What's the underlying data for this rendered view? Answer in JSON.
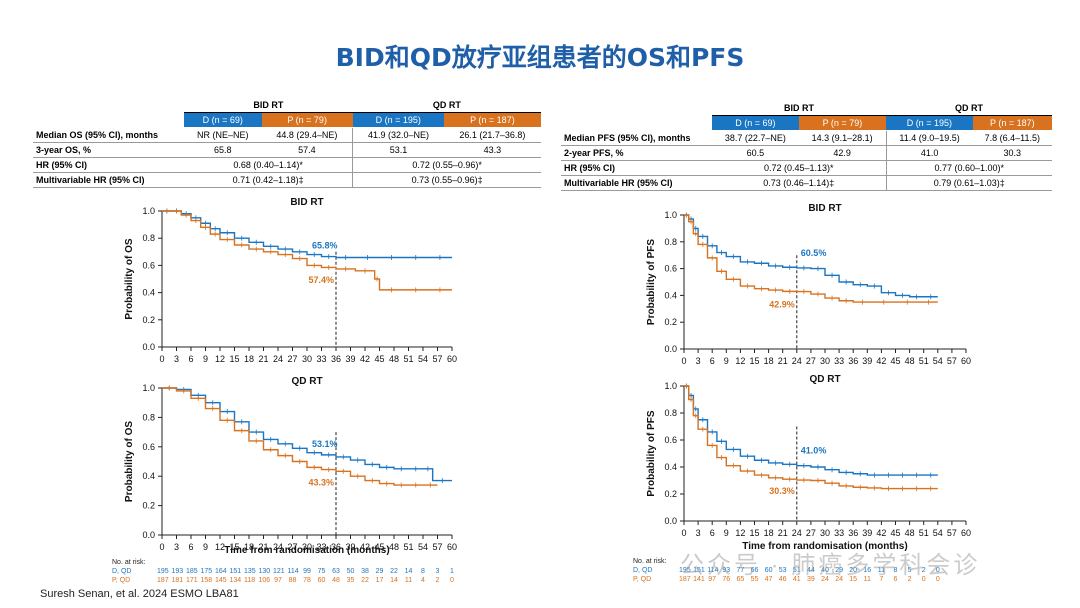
{
  "page_title": "BID和QD放疗亚组患者的OS和PFS",
  "footer": "Suresh Senan, et al. 2024 ESMO LBA81",
  "watermark": "公众号 · 肺癌多学科会诊",
  "colors": {
    "d": "#1a76c2",
    "p": "#d8721f"
  },
  "os_table": {
    "groups": [
      "BID RT",
      "QD RT"
    ],
    "arms": [
      "D (n = 69)",
      "P (n = 79)",
      "D (n = 195)",
      "P (n = 187)"
    ],
    "rows": [
      {
        "label": "Median OS (95% CI), months",
        "cells": [
          "NR (NE–NE)",
          "44.8 (29.4–NE)",
          "41.9 (32.0–NE)",
          "26.1 (21.7–36.8)"
        ]
      },
      {
        "label": "3-year OS, %",
        "cells": [
          "65.8",
          "57.4",
          "53.1",
          "43.3"
        ]
      },
      {
        "label": "HR (95% CI)",
        "merged": [
          "0.68 (0.40–1.14)*",
          "0.72 (0.55–0.96)*"
        ]
      },
      {
        "label": "Multivariable HR (95% CI)",
        "merged": [
          "0.71 (0.42–1.18)‡",
          "0.73 (0.55–0.96)‡"
        ]
      }
    ]
  },
  "pfs_table": {
    "groups": [
      "BID RT",
      "QD RT"
    ],
    "arms": [
      "D (n = 69)",
      "P (n = 79)",
      "D (n = 195)",
      "P (n = 187)"
    ],
    "rows": [
      {
        "label": "Median PFS (95% CI), months",
        "cells": [
          "38.7 (22.7–NE)",
          "14.3 (9.1–28.1)",
          "11.4 (9.0–19.5)",
          "7.8 (6.4–11.5)"
        ]
      },
      {
        "label": "2-year PFS, %",
        "cells": [
          "60.5",
          "42.9",
          "41.0",
          "30.3"
        ]
      },
      {
        "label": "HR (95% CI)",
        "merged": [
          "0.72 (0.45–1.13)*",
          "0.77 (0.60–1.00)*"
        ]
      },
      {
        "label": "Multivariable HR (95% CI)",
        "merged": [
          "0.73 (0.46–1.14)‡",
          "0.79 (0.61–1.03)‡"
        ]
      }
    ]
  },
  "risk_table": {
    "header": "No. at risk:",
    "os": {
      "labels": [
        "D, QD",
        "P, QD"
      ],
      "d": [
        195,
        193,
        185,
        175,
        164,
        151,
        135,
        130,
        121,
        114,
        99,
        75,
        63,
        50,
        38,
        29,
        22,
        14,
        8,
        3,
        1
      ],
      "p": [
        187,
        181,
        171,
        158,
        145,
        134,
        118,
        106,
        97,
        88,
        78,
        60,
        48,
        35,
        22,
        17,
        14,
        11,
        4,
        2,
        0
      ]
    },
    "pfs": {
      "labels": [
        "D, QD",
        "P, QD"
      ],
      "d": [
        195,
        151,
        114,
        93,
        77,
        66,
        60,
        53,
        51,
        44,
        40,
        29,
        20,
        16,
        11,
        8,
        5,
        2,
        0
      ],
      "p": [
        187,
        141,
        97,
        76,
        65,
        55,
        47,
        46,
        41,
        39,
        24,
        24,
        15,
        11,
        7,
        6,
        2,
        0,
        0
      ]
    }
  },
  "chart_data": [
    {
      "type": "line",
      "title": "BID RT",
      "xlabel": "",
      "ylabel": "Probability of OS",
      "xlim": [
        0,
        60
      ],
      "ylim": [
        0,
        1.0
      ],
      "xticks_step": 3,
      "yticks_step": 0.2,
      "landmark_x": 36,
      "legend": "none",
      "grid": false,
      "annotations": [
        {
          "text": "65.8%",
          "series": "D"
        },
        {
          "text": "57.4%",
          "series": "P"
        }
      ],
      "series": [
        {
          "key": "D",
          "x": [
            0,
            2,
            4,
            6,
            8,
            10,
            12,
            15,
            18,
            21,
            24,
            27,
            30,
            33,
            36,
            40,
            45,
            50,
            55,
            60
          ],
          "y": [
            1.0,
            1.0,
            0.98,
            0.95,
            0.91,
            0.87,
            0.84,
            0.8,
            0.77,
            0.74,
            0.72,
            0.7,
            0.68,
            0.665,
            0.658,
            0.658,
            0.658,
            0.658,
            0.658,
            0.658
          ]
        },
        {
          "key": "P",
          "x": [
            0,
            2,
            4,
            6,
            8,
            10,
            12,
            15,
            18,
            21,
            24,
            27,
            30,
            33,
            36,
            40,
            44,
            45,
            50,
            55,
            60
          ],
          "y": [
            1.0,
            1.0,
            0.97,
            0.93,
            0.88,
            0.83,
            0.79,
            0.75,
            0.72,
            0.7,
            0.68,
            0.65,
            0.6,
            0.585,
            0.574,
            0.56,
            0.5,
            0.42,
            0.42,
            0.42,
            0.42
          ]
        }
      ]
    },
    {
      "type": "line",
      "title": "QD RT",
      "xlabel": "Time from randomisation (months)",
      "ylabel": "Probability of OS",
      "xlim": [
        0,
        60
      ],
      "ylim": [
        0,
        1.0
      ],
      "xticks_step": 3,
      "yticks_step": 0.2,
      "landmark_x": 36,
      "legend": "none",
      "grid": false,
      "annotations": [
        {
          "text": "53.1%",
          "series": "D"
        },
        {
          "text": "43.3%",
          "series": "P"
        }
      ],
      "series": [
        {
          "key": "D",
          "x": [
            0,
            3,
            6,
            9,
            12,
            15,
            18,
            21,
            24,
            27,
            30,
            33,
            36,
            39,
            42,
            45,
            48,
            51,
            54,
            56,
            60
          ],
          "y": [
            1.0,
            0.99,
            0.95,
            0.9,
            0.84,
            0.77,
            0.7,
            0.65,
            0.62,
            0.59,
            0.56,
            0.545,
            0.531,
            0.51,
            0.48,
            0.46,
            0.45,
            0.45,
            0.45,
            0.37,
            0.37
          ]
        },
        {
          "key": "P",
          "x": [
            0,
            3,
            6,
            9,
            12,
            15,
            18,
            21,
            24,
            27,
            30,
            33,
            36,
            39,
            42,
            45,
            48,
            51,
            54,
            57
          ],
          "y": [
            1.0,
            0.98,
            0.93,
            0.86,
            0.78,
            0.71,
            0.64,
            0.58,
            0.54,
            0.5,
            0.46,
            0.445,
            0.433,
            0.4,
            0.37,
            0.35,
            0.34,
            0.34,
            0.34,
            0.34
          ]
        }
      ]
    },
    {
      "type": "line",
      "title": "BID RT",
      "xlabel": "",
      "ylabel": "Probability of PFS",
      "xlim": [
        0,
        60
      ],
      "ylim": [
        0,
        1.0
      ],
      "xticks_step": 3,
      "yticks_step": 0.2,
      "landmark_x": 24,
      "legend": "none",
      "grid": false,
      "annotations": [
        {
          "text": "60.5%",
          "series": "D"
        },
        {
          "text": "42.9%",
          "series": "P"
        }
      ],
      "series": [
        {
          "key": "D",
          "x": [
            0,
            1,
            2,
            3,
            5,
            7,
            9,
            12,
            15,
            18,
            21,
            24,
            27,
            30,
            33,
            36,
            39,
            42,
            45,
            48,
            51,
            54
          ],
          "y": [
            1.0,
            0.97,
            0.9,
            0.84,
            0.77,
            0.72,
            0.69,
            0.65,
            0.64,
            0.62,
            0.61,
            0.605,
            0.6,
            0.55,
            0.5,
            0.48,
            0.47,
            0.42,
            0.4,
            0.39,
            0.39,
            0.39
          ]
        },
        {
          "key": "P",
          "x": [
            0,
            1,
            2,
            3,
            5,
            7,
            9,
            12,
            15,
            18,
            21,
            24,
            27,
            30,
            33,
            36,
            40,
            45,
            50,
            54
          ],
          "y": [
            1.0,
            0.95,
            0.86,
            0.78,
            0.68,
            0.58,
            0.52,
            0.47,
            0.45,
            0.44,
            0.43,
            0.429,
            0.41,
            0.38,
            0.36,
            0.35,
            0.35,
            0.35,
            0.35,
            0.35
          ]
        }
      ]
    },
    {
      "type": "line",
      "title": "QD RT",
      "xlabel": "Time from randomisation (months)",
      "ylabel": "Probability of PFS",
      "xlim": [
        0,
        60
      ],
      "ylim": [
        0,
        1.0
      ],
      "xticks_step": 3,
      "yticks_step": 0.2,
      "landmark_x": 24,
      "legend": "none",
      "grid": false,
      "annotations": [
        {
          "text": "41.0%",
          "series": "D"
        },
        {
          "text": "30.3%",
          "series": "P"
        }
      ],
      "series": [
        {
          "key": "D",
          "x": [
            0,
            1,
            2,
            3,
            5,
            7,
            9,
            12,
            15,
            18,
            21,
            24,
            27,
            30,
            33,
            36,
            39,
            42,
            45,
            48,
            51,
            54
          ],
          "y": [
            1.0,
            0.93,
            0.83,
            0.75,
            0.66,
            0.59,
            0.53,
            0.48,
            0.45,
            0.43,
            0.42,
            0.41,
            0.4,
            0.38,
            0.36,
            0.35,
            0.34,
            0.34,
            0.34,
            0.34,
            0.34,
            0.34
          ]
        },
        {
          "key": "P",
          "x": [
            0,
            1,
            2,
            3,
            5,
            7,
            9,
            12,
            15,
            18,
            21,
            24,
            27,
            30,
            33,
            36,
            39,
            42,
            45,
            48,
            51,
            54
          ],
          "y": [
            1.0,
            0.9,
            0.78,
            0.68,
            0.56,
            0.47,
            0.41,
            0.37,
            0.34,
            0.32,
            0.31,
            0.303,
            0.3,
            0.28,
            0.26,
            0.25,
            0.245,
            0.24,
            0.24,
            0.24,
            0.24,
            0.24
          ]
        }
      ]
    }
  ]
}
